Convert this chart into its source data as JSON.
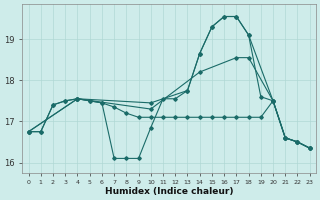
{
  "xlabel": "Humidex (Indice chaleur)",
  "background_color": "#ceecea",
  "grid_color": "#b0d8d5",
  "line_color": "#1a6b68",
  "xlim": [
    -0.5,
    23.5
  ],
  "ylim": [
    15.75,
    19.85
  ],
  "yticks": [
    16,
    17,
    18,
    19
  ],
  "xticks": [
    0,
    1,
    2,
    3,
    4,
    5,
    6,
    7,
    8,
    9,
    10,
    11,
    12,
    13,
    14,
    15,
    16,
    17,
    18,
    19,
    20,
    21,
    22,
    23
  ],
  "curve1_x": [
    0,
    1,
    2,
    3,
    4,
    5,
    6,
    7,
    8,
    9,
    10,
    11,
    12,
    13,
    14,
    15,
    16,
    17,
    18,
    19,
    20,
    21,
    22,
    23
  ],
  "curve1_y": [
    16.75,
    16.75,
    17.4,
    17.5,
    17.55,
    17.5,
    17.45,
    16.1,
    16.1,
    16.1,
    16.85,
    17.55,
    17.55,
    17.75,
    18.65,
    19.3,
    19.55,
    19.55,
    19.1,
    17.6,
    17.5,
    16.6,
    16.5,
    16.35
  ],
  "curve2_x": [
    0,
    4,
    10,
    13,
    14,
    15,
    16,
    17,
    18,
    20,
    21,
    22,
    23
  ],
  "curve2_y": [
    16.75,
    17.55,
    17.45,
    17.75,
    18.65,
    19.3,
    19.55,
    19.55,
    19.1,
    17.5,
    16.6,
    16.5,
    16.35
  ],
  "curve3_x": [
    0,
    4,
    10,
    14,
    17,
    18,
    20,
    21,
    22,
    23
  ],
  "curve3_y": [
    16.75,
    17.55,
    17.3,
    18.2,
    18.55,
    18.55,
    17.5,
    16.6,
    16.5,
    16.35
  ],
  "curve4_x": [
    0,
    1,
    2,
    3,
    4,
    5,
    6,
    7,
    8,
    9,
    10,
    11,
    12,
    13,
    14,
    15,
    16,
    17,
    18,
    19,
    20,
    21,
    22,
    23
  ],
  "curve4_y": [
    16.75,
    16.75,
    17.4,
    17.5,
    17.55,
    17.5,
    17.45,
    17.35,
    17.2,
    17.1,
    17.1,
    17.1,
    17.1,
    17.1,
    17.1,
    17.1,
    17.1,
    17.1,
    17.1,
    17.1,
    17.5,
    16.6,
    16.5,
    16.35
  ]
}
